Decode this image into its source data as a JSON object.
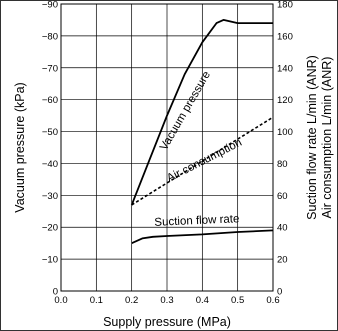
{
  "chart_data": {
    "type": "line",
    "xlabel": "Supply pressure (MPa)",
    "ylabel": "Vacuum pressure (kPa)",
    "y2label_line1": "Suction flow rate  L/min (ANR)",
    "y2label_line2": "Air consumption  L/min (ANR)",
    "xlim": [
      0.0,
      0.6
    ],
    "ylim": [
      0,
      -90
    ],
    "y2lim": [
      0,
      180
    ],
    "grid": true,
    "x_ticks": [
      "0.0",
      "0.1",
      "0.2",
      "0.3",
      "0.4",
      "0.5",
      "0.6"
    ],
    "y_ticks": [
      "0",
      "−10",
      "−20",
      "−30",
      "−40",
      "−50",
      "−60",
      "−70",
      "−80",
      "−90"
    ],
    "y2_ticks": [
      "0",
      "20",
      "40",
      "60",
      "80",
      "100",
      "120",
      "140",
      "160",
      "180"
    ],
    "series": [
      {
        "name": "Vacuum pressure",
        "axis": "left",
        "style": "solid",
        "x": [
          0.2,
          0.25,
          0.3,
          0.35,
          0.4,
          0.44,
          0.46,
          0.5,
          0.6
        ],
        "y": [
          -27,
          -41,
          -55,
          -68,
          -78,
          -84,
          -85,
          -84,
          -84
        ]
      },
      {
        "name": "Air consumption",
        "axis": "right",
        "style": "dashed",
        "x": [
          0.2,
          0.6
        ],
        "y": [
          54,
          109
        ]
      },
      {
        "name": "Suction flow rate",
        "axis": "right",
        "style": "solid",
        "x": [
          0.2,
          0.23,
          0.26,
          0.3,
          0.4,
          0.5,
          0.6
        ],
        "y": [
          30,
          33,
          34,
          34.5,
          35.5,
          37,
          38
        ]
      }
    ]
  }
}
